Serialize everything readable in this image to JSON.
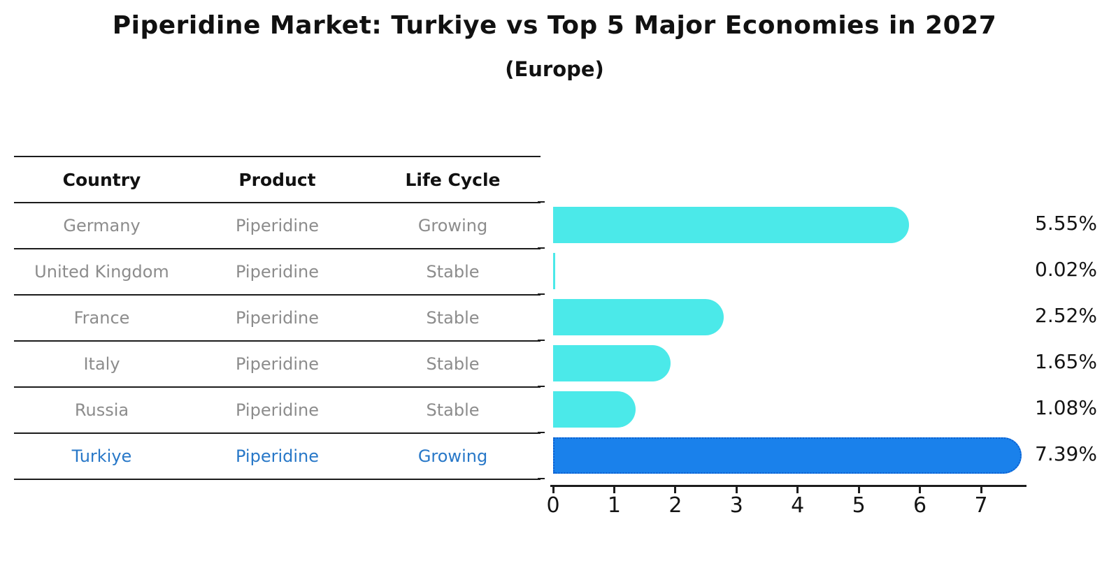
{
  "title": "Piperidine Market: Turkiye vs Top 5 Major Economies in 2027",
  "subtitle": "(Europe)",
  "table": {
    "headers": [
      "Country",
      "Product",
      "Life Cycle"
    ],
    "rows": [
      {
        "country": "Germany",
        "product": "Piperidine",
        "life_cycle": "Growing",
        "highlight": false
      },
      {
        "country": "United Kingdom",
        "product": "Piperidine",
        "life_cycle": "Stable",
        "highlight": false
      },
      {
        "country": "France",
        "product": "Piperidine",
        "life_cycle": "Stable",
        "highlight": false
      },
      {
        "country": "Italy",
        "product": "Piperidine",
        "life_cycle": "Stable",
        "highlight": false
      },
      {
        "country": "Russia",
        "product": "Piperidine",
        "life_cycle": "Stable",
        "highlight": false
      },
      {
        "country": "Turkiye",
        "product": "Piperidine",
        "life_cycle": "Growing",
        "highlight": true
      }
    ]
  },
  "chart_data": {
    "type": "bar",
    "orientation": "horizontal",
    "title": "Piperidine Market: Turkiye vs Top 5 Major Economies in 2027",
    "subtitle": "(Europe)",
    "categories": [
      "Germany",
      "United Kingdom",
      "France",
      "Italy",
      "Russia",
      "Turkiye"
    ],
    "values": [
      5.55,
      0.02,
      2.52,
      1.65,
      1.08,
      7.39
    ],
    "value_labels": [
      "5.55%",
      "0.02%",
      "2.52%",
      "1.65%",
      "1.08%",
      "7.39%"
    ],
    "highlight_index": 5,
    "xlabel": "",
    "ylabel": "",
    "xlim": [
      0,
      7.75
    ],
    "xticks": [
      0,
      1,
      2,
      3,
      4,
      5,
      6,
      7
    ],
    "grid": false,
    "legend": false,
    "bar_color": "#4be9e9",
    "highlight_color": "#1a81eb",
    "highlight_border_color": "#0d5fd0"
  },
  "colors": {
    "background": "#ffffff",
    "text": "#141414",
    "muted_text": "#8c8c8c",
    "highlight_text": "#2878c8",
    "line": "#1c1c1c"
  }
}
